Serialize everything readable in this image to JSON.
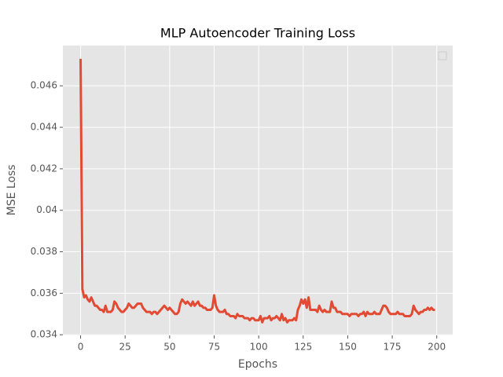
{
  "chart_data": {
    "type": "line",
    "title": "MLP Autoencoder Training Loss",
    "x_label": "Epochs",
    "y_label": "MSE Loss",
    "x": [
      0,
      1,
      2,
      3,
      4,
      5,
      6,
      7,
      8,
      9,
      10,
      11,
      12,
      13,
      14,
      15,
      16,
      17,
      18,
      19,
      20,
      21,
      22,
      23,
      24,
      25,
      26,
      27,
      28,
      29,
      30,
      31,
      32,
      33,
      34,
      35,
      36,
      37,
      38,
      39,
      40,
      41,
      42,
      43,
      44,
      45,
      46,
      47,
      48,
      49,
      50,
      51,
      52,
      53,
      54,
      55,
      56,
      57,
      58,
      59,
      60,
      61,
      62,
      63,
      64,
      65,
      66,
      67,
      68,
      69,
      70,
      71,
      72,
      73,
      74,
      75,
      76,
      77,
      78,
      79,
      80,
      81,
      82,
      83,
      84,
      85,
      86,
      87,
      88,
      89,
      90,
      91,
      92,
      93,
      94,
      95,
      96,
      97,
      98,
      99,
      100,
      101,
      102,
      103,
      104,
      105,
      106,
      107,
      108,
      109,
      110,
      111,
      112,
      113,
      114,
      115,
      116,
      117,
      118,
      119,
      120,
      121,
      122,
      123,
      124,
      125,
      126,
      127,
      128,
      129,
      130,
      131,
      132,
      133,
      134,
      135,
      136,
      137,
      138,
      139,
      140,
      141,
      142,
      143,
      144,
      145,
      146,
      147,
      148,
      149,
      150,
      151,
      152,
      153,
      154,
      155,
      156,
      157,
      158,
      159,
      160,
      161,
      162,
      163,
      164,
      165,
      166,
      167,
      168,
      169,
      170,
      171,
      172,
      173,
      174,
      175,
      176,
      177,
      178,
      179,
      180,
      181,
      182,
      183,
      184,
      185,
      186,
      187,
      188,
      189,
      190,
      191,
      192,
      193,
      194,
      195,
      196,
      197,
      198,
      199
    ],
    "values": [
      0.0473,
      0.0362,
      0.0358,
      0.0359,
      0.0357,
      0.0356,
      0.0358,
      0.0356,
      0.0354,
      0.0354,
      0.0353,
      0.0352,
      0.0352,
      0.0351,
      0.0354,
      0.0351,
      0.0351,
      0.0351,
      0.0352,
      0.0356,
      0.0355,
      0.0353,
      0.0352,
      0.0351,
      0.0351,
      0.0352,
      0.0353,
      0.0355,
      0.0354,
      0.0353,
      0.0353,
      0.0354,
      0.0355,
      0.0355,
      0.0355,
      0.0353,
      0.0352,
      0.0351,
      0.0351,
      0.0351,
      0.035,
      0.0351,
      0.0351,
      0.035,
      0.0351,
      0.0352,
      0.0353,
      0.0354,
      0.0353,
      0.0352,
      0.0353,
      0.0352,
      0.0351,
      0.035,
      0.035,
      0.0351,
      0.0355,
      0.0357,
      0.0356,
      0.0355,
      0.0356,
      0.0355,
      0.0354,
      0.0356,
      0.0354,
      0.0355,
      0.0356,
      0.0354,
      0.0354,
      0.0353,
      0.0353,
      0.0352,
      0.0352,
      0.0352,
      0.0353,
      0.0359,
      0.0354,
      0.0352,
      0.0351,
      0.0351,
      0.0351,
      0.0352,
      0.035,
      0.035,
      0.0349,
      0.0349,
      0.0349,
      0.0348,
      0.035,
      0.0349,
      0.0349,
      0.0349,
      0.0348,
      0.0348,
      0.0348,
      0.0347,
      0.0348,
      0.0348,
      0.0347,
      0.0347,
      0.0347,
      0.0349,
      0.0346,
      0.0348,
      0.0348,
      0.0348,
      0.0349,
      0.0347,
      0.0348,
      0.0348,
      0.0349,
      0.0348,
      0.0347,
      0.035,
      0.0347,
      0.0348,
      0.0346,
      0.0347,
      0.0347,
      0.0347,
      0.0348,
      0.0347,
      0.0352,
      0.0354,
      0.0357,
      0.0355,
      0.0357,
      0.0353,
      0.0358,
      0.0352,
      0.0352,
      0.0352,
      0.0352,
      0.0351,
      0.0354,
      0.0352,
      0.0351,
      0.0352,
      0.0351,
      0.0351,
      0.0351,
      0.0356,
      0.0353,
      0.0353,
      0.0351,
      0.0351,
      0.0351,
      0.035,
      0.035,
      0.035,
      0.035,
      0.0349,
      0.035,
      0.035,
      0.035,
      0.035,
      0.0349,
      0.035,
      0.035,
      0.0351,
      0.0349,
      0.0351,
      0.035,
      0.035,
      0.035,
      0.0351,
      0.035,
      0.035,
      0.035,
      0.0352,
      0.0354,
      0.0354,
      0.0353,
      0.0351,
      0.035,
      0.035,
      0.035,
      0.035,
      0.0351,
      0.035,
      0.035,
      0.035,
      0.0349,
      0.0349,
      0.0349,
      0.0349,
      0.035,
      0.0354,
      0.0352,
      0.0351,
      0.035,
      0.0351,
      0.0351,
      0.0352,
      0.0352,
      0.0353,
      0.0352,
      0.0353,
      0.0352,
      0.0352
    ],
    "color": "#E24A33",
    "xlim": [
      -9.95,
      208.95
    ],
    "xticks": [
      0,
      25,
      50,
      75,
      100,
      125,
      150,
      175,
      200
    ],
    "ylim": [
      0.03397,
      0.04794
    ],
    "yticks": [
      0.034,
      0.036,
      0.038,
      0.04,
      0.042,
      0.044,
      0.046
    ],
    "grid": true
  }
}
